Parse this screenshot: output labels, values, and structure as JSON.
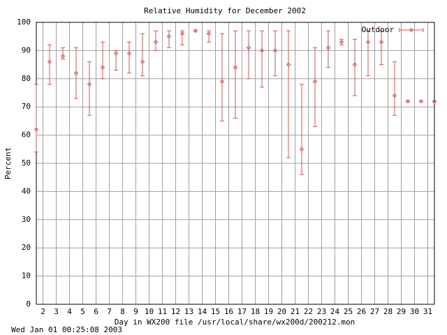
{
  "chart_data": {
    "type": "errorbar",
    "title": "Relative Humidity for December 2002",
    "xlabel": "Day in WX200 file /usr/local/share/wx200d/200212.mon",
    "ylabel": "Percent",
    "footer": "Wed Jan 01 00:25:08 2003",
    "x": [
      1.5,
      2.5,
      3.5,
      4.5,
      5.5,
      6.5,
      7.5,
      8.5,
      9.5,
      10.5,
      11.5,
      12.5,
      13.5,
      14.5,
      15.5,
      16.5,
      17.5,
      18.5,
      19.5,
      20.5,
      21.5,
      22.5,
      23.5,
      24.5,
      25.5,
      26.5,
      27.5,
      28.5,
      29.5,
      30.5,
      31.5
    ],
    "series": [
      {
        "name": "Outdoor",
        "color": "#e05050",
        "values": [
          62,
          86,
          88,
          82,
          78,
          84,
          89,
          89,
          86,
          93,
          95,
          96,
          97,
          96,
          79,
          84,
          91,
          90,
          90,
          85,
          55,
          79,
          91,
          93,
          85,
          93,
          93,
          74,
          72,
          72,
          72
        ],
        "low": [
          54,
          78,
          87,
          73,
          67,
          80,
          83,
          82,
          81,
          90,
          91,
          92,
          97,
          93,
          65,
          66,
          80,
          77,
          81,
          52,
          46,
          63,
          84,
          92,
          74,
          81,
          85,
          67,
          72,
          72,
          72
        ],
        "high": [
          78,
          92,
          91,
          91,
          86,
          93,
          90,
          93,
          96,
          97,
          97,
          97,
          97,
          97,
          96,
          97,
          97,
          97,
          97,
          97,
          78,
          91,
          97,
          94,
          94,
          97,
          97,
          86,
          72,
          72,
          72
        ]
      }
    ],
    "xlim": [
      1.5,
      31.5
    ],
    "xticks": [
      2,
      3,
      4,
      5,
      6,
      7,
      8,
      9,
      10,
      11,
      12,
      13,
      14,
      15,
      16,
      17,
      18,
      19,
      20,
      21,
      22,
      23,
      24,
      25,
      26,
      27,
      28,
      29,
      30,
      31
    ],
    "ylim": [
      0,
      100
    ],
    "yticks": [
      0,
      10,
      20,
      30,
      40,
      50,
      60,
      70,
      80,
      90,
      100
    ],
    "grid": true,
    "legend": "top-right"
  }
}
